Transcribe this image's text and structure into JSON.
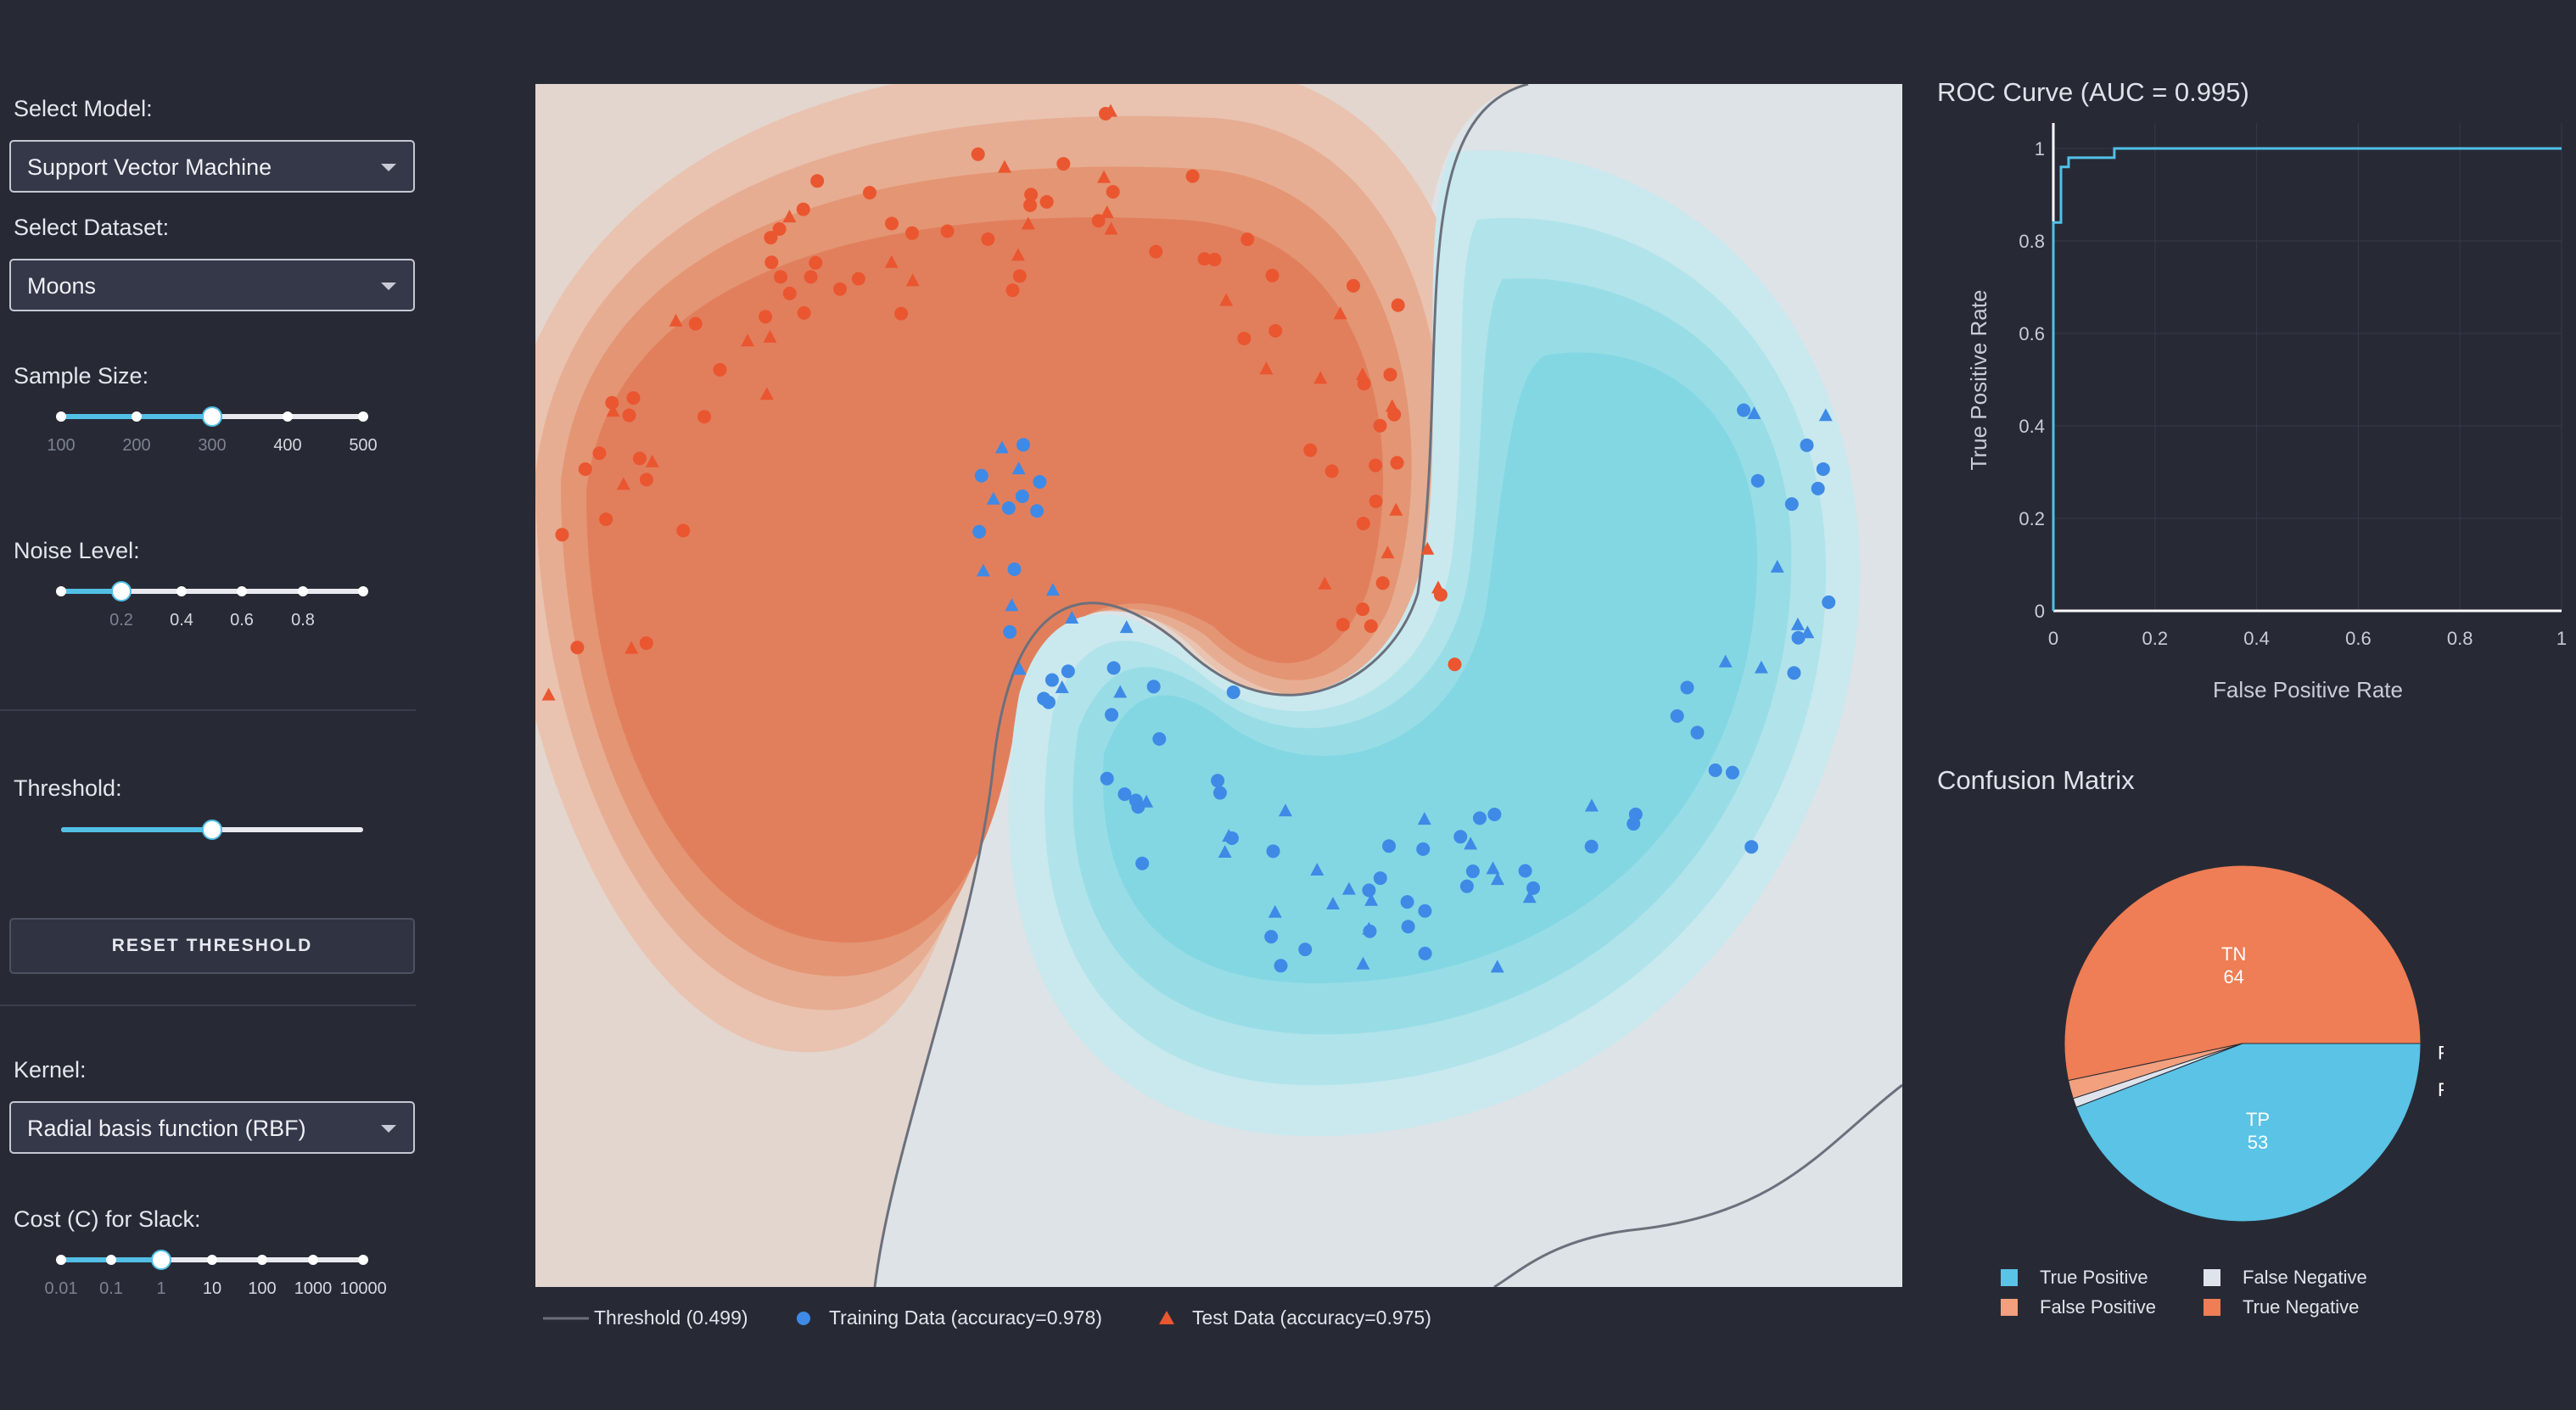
{
  "sidebar": {
    "model_label": "Select Model:",
    "model_value": "Support Vector Machine",
    "dataset_label": "Select Dataset:",
    "dataset_value": "Moons",
    "sample_label": "Sample Size:",
    "sample_marks": [
      "100",
      "200",
      "300",
      "400",
      "500"
    ],
    "sample_value": 300,
    "noise_label": "Noise Level:",
    "noise_marks": [
      "0.2",
      "0.4",
      "0.6",
      "0.8"
    ],
    "noise_value": 0.2,
    "threshold_label": "Threshold:",
    "threshold_value": 0.5,
    "reset_label": "RESET THRESHOLD",
    "kernel_label": "Kernel:",
    "kernel_value": "Radial basis function (RBF)",
    "cost_label": "Cost (C) for Slack:",
    "cost_marks": [
      "0.01",
      "0.1",
      "1",
      "10",
      "100",
      "1000",
      "10000"
    ],
    "cost_value": 1
  },
  "main_plot": {
    "legend": {
      "threshold": "Threshold (0.499)",
      "training": "Training Data (accuracy=0.978)",
      "test": "Test Data (accuracy=0.975)"
    }
  },
  "roc": {
    "title": "ROC Curve (AUC = 0.995)",
    "xlabel": "False Positive Rate",
    "ylabel": "True Positive Rate",
    "xticks": [
      "0",
      "0.2",
      "0.4",
      "0.6",
      "0.8",
      "1"
    ],
    "yticks": [
      "0",
      "0.2",
      "0.4",
      "0.6",
      "0.8",
      "1"
    ]
  },
  "confusion": {
    "title": "Confusion Matrix",
    "slices": [
      {
        "short": "TN",
        "value": 64,
        "color": "#ef7d55"
      },
      {
        "short": "FP",
        "value": 2,
        "color": "#f2a07e"
      },
      {
        "short": "FN",
        "value": 1,
        "color": "#dfe3ec"
      },
      {
        "short": "TP",
        "value": 53,
        "color": "#5ac3e6"
      }
    ],
    "legend": [
      "True Positive",
      "False Negative",
      "False Positive",
      "True Negative"
    ]
  },
  "colors": {
    "class_red": "#ea5630",
    "class_blue": "#3e8ae6",
    "accent": "#52c0e6",
    "boundary": "#6c707c"
  },
  "chart_data": [
    {
      "type": "scatter",
      "title": "",
      "xlabel": "",
      "ylabel": "",
      "series": [
        {
          "name": "Training Data (accuracy=0.978)",
          "marker": "circle"
        },
        {
          "name": "Test Data (accuracy=0.975)",
          "marker": "triangle"
        }
      ],
      "threshold": 0.499
    },
    {
      "type": "line",
      "title": "ROC Curve (AUC = 0.995)",
      "xlabel": "False Positive Rate",
      "ylabel": "True Positive Rate",
      "xlim": [
        0,
        1
      ],
      "ylim": [
        0,
        1
      ],
      "x": [
        0,
        0,
        0.015,
        0.015,
        0.03,
        0.03,
        0.12,
        0.12,
        1
      ],
      "y": [
        0,
        0.84,
        0.84,
        0.96,
        0.96,
        0.98,
        0.98,
        1,
        1
      ]
    },
    {
      "type": "pie",
      "title": "Confusion Matrix",
      "categories": [
        "True Negative",
        "False Positive",
        "False Negative",
        "True Positive"
      ],
      "values": [
        64,
        2,
        1,
        53
      ]
    }
  ]
}
